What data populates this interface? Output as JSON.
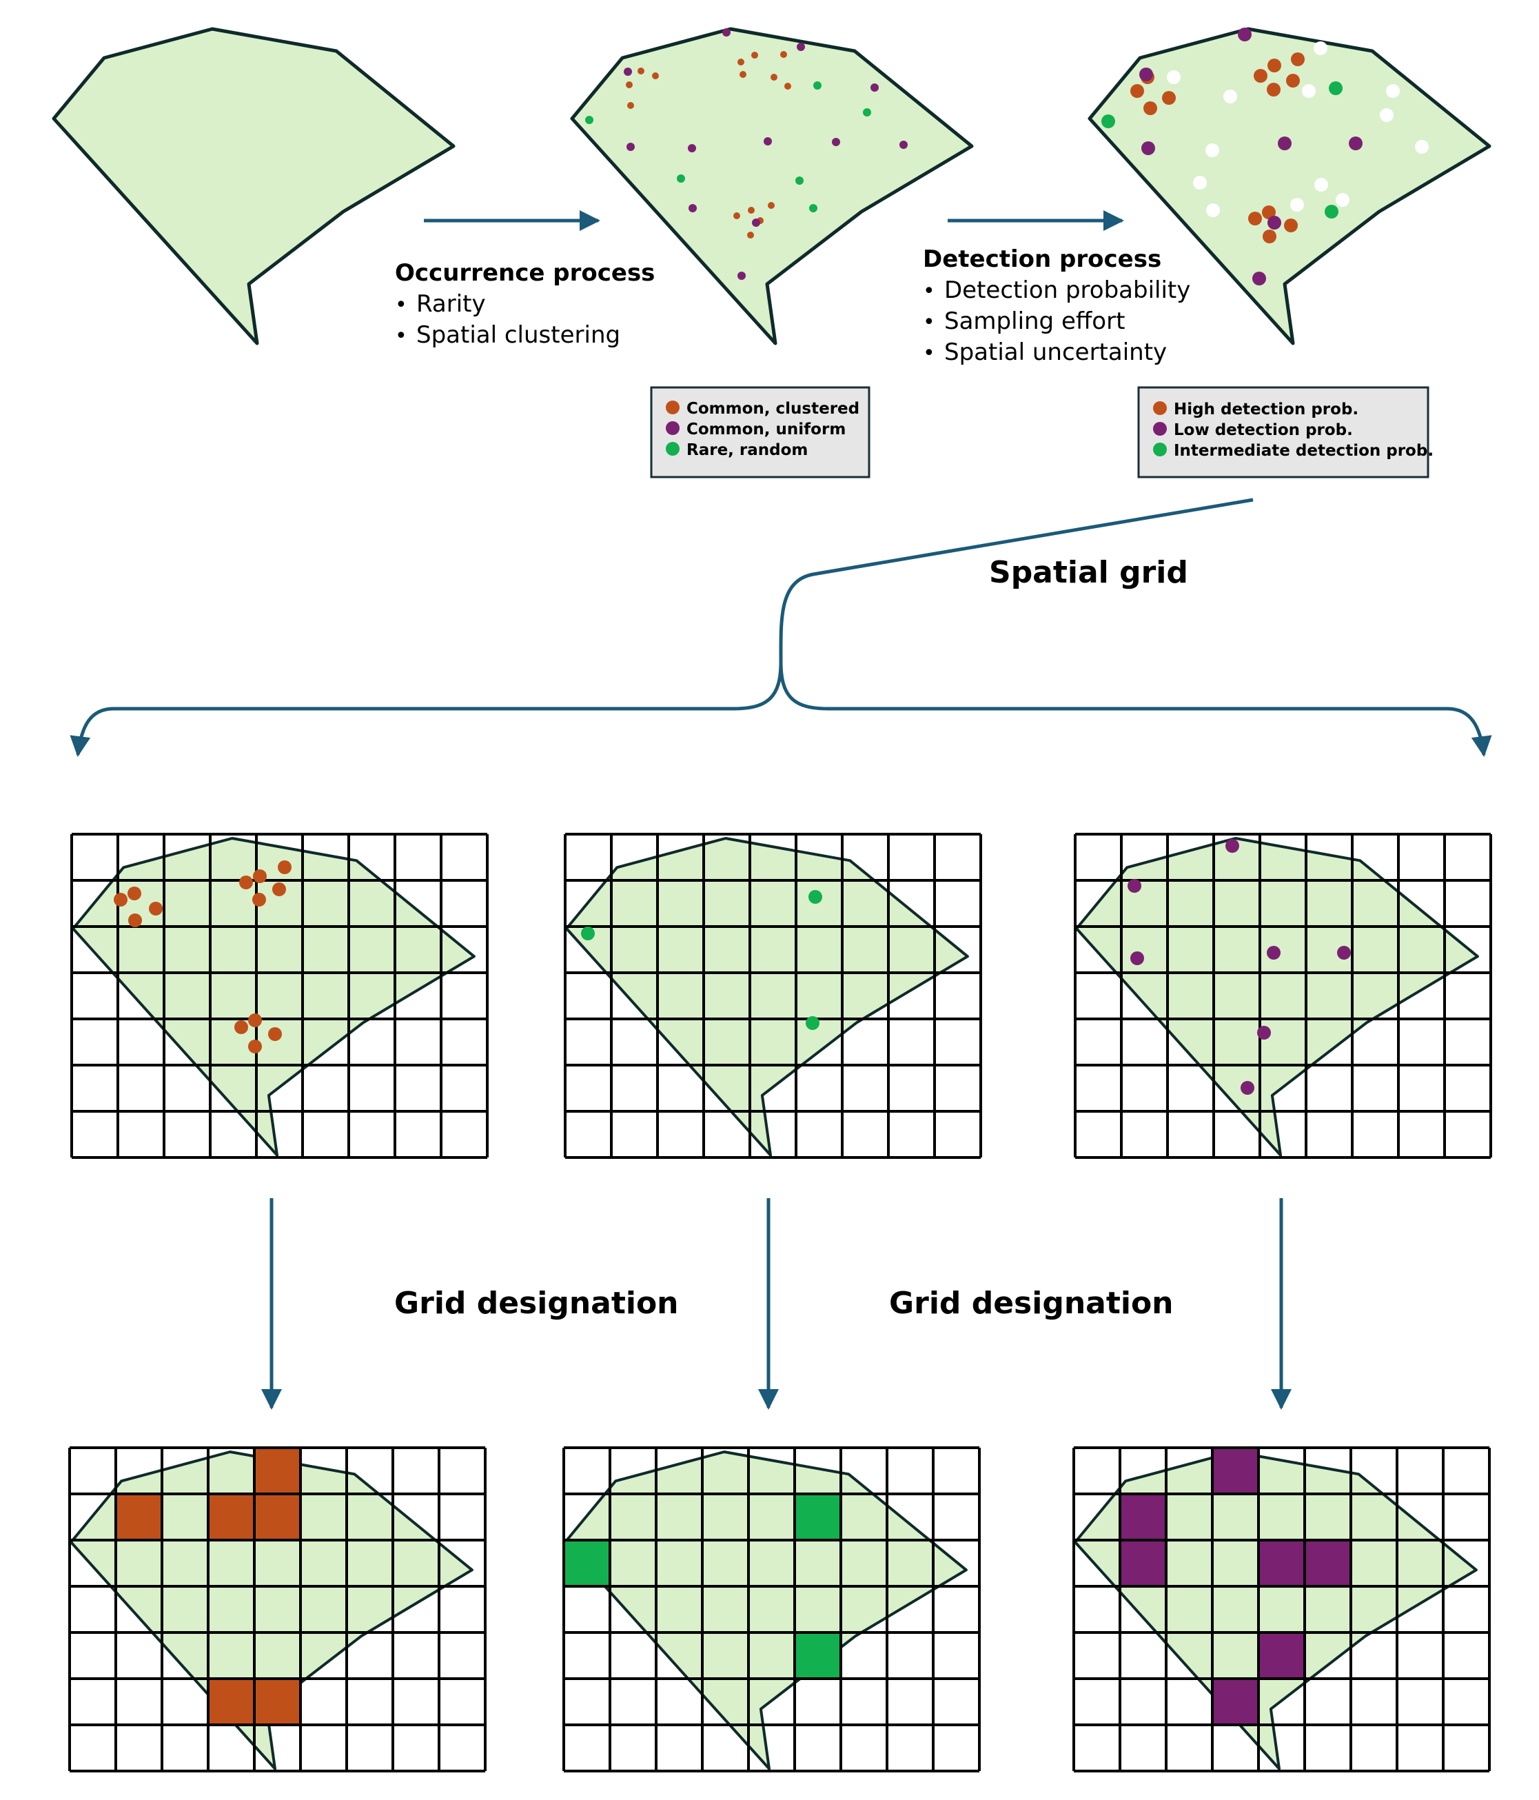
{
  "colors": {
    "land": "#D9F0CB",
    "outline": "#0F2A2A",
    "arrow": "#1B5A78",
    "orange": "#C0501A",
    "purple": "#7A2172",
    "green": "#12B04E",
    "white_dot": "#FFFFFF",
    "legend_bg": "#E6E6E6",
    "legend_border": "#1A2E3A"
  },
  "occurrence": {
    "title": "Occurrence process",
    "bullets": [
      "Rarity",
      "Spatial clustering"
    ]
  },
  "detection": {
    "title": "Detection process",
    "bullets": [
      "Detection probability",
      "Sampling effort",
      "Spatial uncertainty"
    ]
  },
  "legend_occurrence": [
    {
      "label": "Common, clustered",
      "color": "orange"
    },
    {
      "label": "Common, uniform",
      "color": "purple"
    },
    {
      "label": "Rare, random",
      "color": "green"
    }
  ],
  "legend_detection": [
    {
      "label": "High detection prob.",
      "color": "orange"
    },
    {
      "label": "Low detection prob.",
      "color": "purple"
    },
    {
      "label": "Intermediate detection prob.",
      "color": "green"
    }
  ],
  "spatial_grid_label": "Spatial grid",
  "grid_designation_labels": [
    "Grid designation",
    "Grid designation"
  ],
  "filled_cells": {
    "orange": [
      [
        4,
        0
      ],
      [
        1,
        1
      ],
      [
        3,
        1
      ],
      [
        4,
        1
      ],
      [
        3,
        5
      ],
      [
        4,
        5
      ]
    ],
    "green": [
      [
        5,
        1
      ],
      [
        0,
        2
      ],
      [
        5,
        4
      ]
    ],
    "purple": [
      [
        3,
        0
      ],
      [
        1,
        1
      ],
      [
        1,
        2
      ],
      [
        4,
        2
      ],
      [
        5,
        2
      ],
      [
        4,
        4
      ],
      [
        3,
        5
      ]
    ]
  }
}
